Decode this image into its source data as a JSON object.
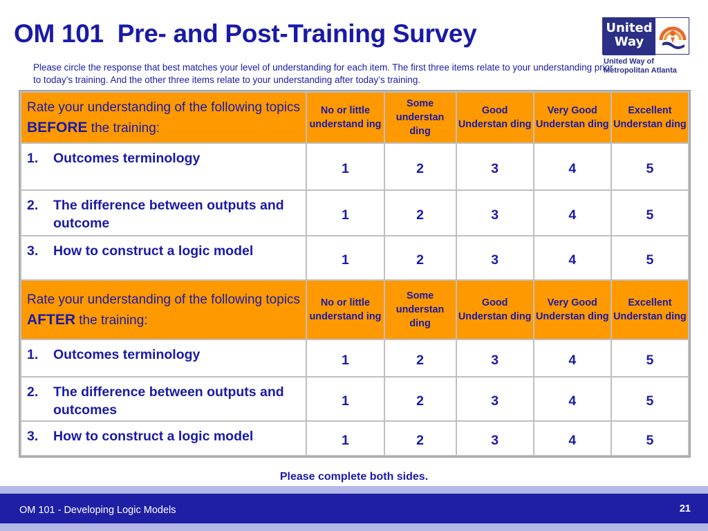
{
  "slide": {
    "title": "OM 101  Pre- and Post-Training Survey",
    "intro": "Please circle the response that best matches your level of understanding for each item.  The first three items relate to your understanding prior to today’s training. And the other three items relate to your understanding after today’s training.",
    "note": "Please complete both sides."
  },
  "logo": {
    "line1": "United",
    "line2": "Way",
    "sub1": "United Way of",
    "sub2": "Metropolitan Atlanta",
    "colors": {
      "primary": "#2b2f86",
      "accent": "#e8692e"
    }
  },
  "scale": [
    "No or little understand ing",
    "Some understan ding",
    "Good Understan ding",
    "Very Good Understan ding",
    "Excellent Understan ding"
  ],
  "before": {
    "lead_pre": "Rate your understanding of the following topics ",
    "lead_key": "BEFORE",
    "lead_post": " the training:",
    "items": [
      {
        "num": "1.",
        "text": "Outcomes terminology",
        "values": [
          "1",
          "2",
          "3",
          "4",
          "5"
        ]
      },
      {
        "num": "2.",
        "text": "The difference between outputs and outcome",
        "values": [
          "1",
          "2",
          "3",
          "4",
          "5"
        ]
      },
      {
        "num": "3.",
        "text": "How to construct a logic model",
        "values": [
          "1",
          "2",
          "3",
          "4",
          "5"
        ]
      }
    ]
  },
  "after": {
    "lead_pre": "Rate your understanding of the following topics ",
    "lead_key": "AFTER",
    "lead_post": " the training:",
    "items": [
      {
        "num": "1.",
        "text": "Outcomes terminology",
        "values": [
          "1",
          "2",
          "3",
          "4",
          "5"
        ]
      },
      {
        "num": "2.",
        "text": "The difference between outputs and outcomes",
        "values": [
          "1",
          "2",
          "3",
          "4",
          "5"
        ]
      },
      {
        "num": "3.",
        "text": "How to construct a logic model",
        "values": [
          "1",
          "2",
          "3",
          "4",
          "5"
        ]
      }
    ]
  },
  "footer": {
    "left": "OM 101 - Developing Logic Models",
    "page": "21"
  },
  "colors": {
    "header_fill": "#ff9900",
    "text_blue": "#1a1aa6",
    "footer_bar": "#1f1fa6"
  }
}
